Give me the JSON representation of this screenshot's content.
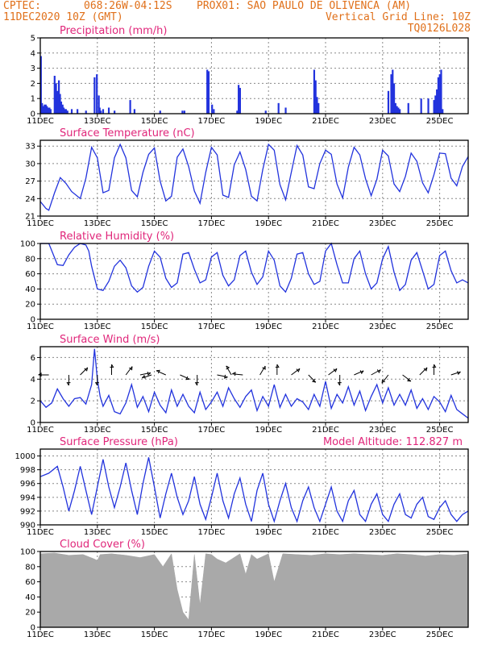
{
  "header": {
    "line1_left": "CPTEC:",
    "line1_coords": "068:26W-04:12S",
    "line1_station": "PROX01: SAO PAULO DE OLIVENCA (AM)",
    "line2_left": "11DEC2020 10Z (GMT)",
    "line2_right": "Vertical Grid Line: 10Z",
    "line3_right": "TQ0126L028"
  },
  "colors": {
    "header": "#e0701a",
    "title": "#e0267a",
    "series": "#2233dd",
    "cloud": "#a9a9a9",
    "grid": "#888888"
  },
  "x_axis": {
    "tick_labels": [
      "11DEC",
      "13DEC",
      "15DEC",
      "17DEC",
      "19DEC",
      "21DEC",
      "23DEC",
      "25DEC"
    ],
    "tick_days": [
      0,
      2,
      4,
      6,
      8,
      10,
      12,
      14
    ],
    "range_days": [
      0,
      15
    ]
  },
  "chart_data": [
    {
      "type": "bar",
      "title": "Precipitation (mm/h)",
      "ylim": [
        0,
        5
      ],
      "yticks": [
        0,
        1,
        2,
        3,
        4,
        5
      ],
      "x": [
        0.02,
        0.06,
        0.1,
        0.15,
        0.19,
        0.23,
        0.27,
        0.32,
        0.36,
        0.5,
        0.55,
        0.6,
        0.65,
        0.69,
        0.73,
        0.78,
        0.82,
        0.86,
        0.9,
        0.95,
        1.1,
        1.3,
        1.6,
        1.9,
        1.98,
        2.05,
        2.08,
        2.12,
        2.2,
        2.4,
        2.6,
        3.15,
        3.3,
        4.2,
        4.98,
        5.05,
        5.85,
        5.9,
        6.02,
        6.08,
        6.9,
        6.95,
        7.0,
        7.9,
        8.35,
        8.6,
        9.6,
        9.65,
        9.7,
        9.75,
        12.2,
        12.3,
        12.35,
        12.4,
        12.45,
        12.5,
        12.55,
        12.6,
        12.9,
        13.35,
        13.6,
        13.8,
        13.85,
        13.9,
        13.95,
        14.0,
        14.05,
        14.1
      ],
      "values": [
        3.8,
        0.7,
        0.5,
        0.6,
        0.6,
        0.5,
        0.4,
        0.4,
        0.3,
        2.5,
        2.0,
        1.5,
        2.2,
        1.3,
        0.8,
        0.6,
        0.4,
        0.3,
        0.3,
        0.2,
        0.3,
        0.3,
        0.2,
        2.4,
        2.6,
        1.2,
        0.4,
        0.2,
        0.3,
        0.4,
        0.2,
        0.9,
        0.3,
        0.2,
        0.2,
        0.2,
        2.9,
        2.8,
        0.6,
        0.3,
        0.2,
        1.9,
        1.7,
        0.2,
        0.7,
        0.4,
        2.9,
        2.2,
        1.1,
        0.7,
        1.5,
        2.6,
        2.9,
        2.0,
        0.7,
        0.5,
        0.4,
        0.3,
        0.7,
        1.0,
        1.0,
        0.9,
        1.2,
        1.6,
        2.4,
        2.6,
        2.9,
        0.3
      ]
    },
    {
      "type": "line",
      "title": "Surface Temperature (nC)",
      "ylim": [
        21,
        34
      ],
      "yticks": [
        21,
        24,
        27,
        30,
        33
      ],
      "x": [
        0,
        0.2,
        0.3,
        0.5,
        0.7,
        0.9,
        1.1,
        1.4,
        1.6,
        1.8,
        2.0,
        2.2,
        2.4,
        2.6,
        2.8,
        3.0,
        3.2,
        3.4,
        3.6,
        3.8,
        4.0,
        4.2,
        4.4,
        4.6,
        4.8,
        5.0,
        5.2,
        5.4,
        5.6,
        5.8,
        6.0,
        6.2,
        6.4,
        6.6,
        6.8,
        7.0,
        7.2,
        7.4,
        7.6,
        7.8,
        8.0,
        8.2,
        8.4,
        8.6,
        8.8,
        9.0,
        9.2,
        9.4,
        9.6,
        9.8,
        10.0,
        10.2,
        10.4,
        10.6,
        10.8,
        11.0,
        11.2,
        11.4,
        11.6,
        11.8,
        12.0,
        12.2,
        12.4,
        12.6,
        12.8,
        13.0,
        13.2,
        13.4,
        13.6,
        13.8,
        14.0,
        14.2,
        14.4,
        14.6,
        14.8,
        15.0
      ],
      "values": [
        23.5,
        22.3,
        22.0,
        25.0,
        27.6,
        26.6,
        25.2,
        24.0,
        27.5,
        32.8,
        31.0,
        25.0,
        25.4,
        31.0,
        33.3,
        31.0,
        25.4,
        24.3,
        28.5,
        31.6,
        32.7,
        27.0,
        23.6,
        24.4,
        31.1,
        32.5,
        29.5,
        25.3,
        23.2,
        28.5,
        32.8,
        31.5,
        24.6,
        24.2,
        29.8,
        32.0,
        29.0,
        24.4,
        23.6,
        29.0,
        33.3,
        32.3,
        26.4,
        23.8,
        28.5,
        33.1,
        31.5,
        26.0,
        25.7,
        30.0,
        32.3,
        31.6,
        26.5,
        24.1,
        29.4,
        32.8,
        31.5,
        27.4,
        24.5,
        27.3,
        32.3,
        31.3,
        26.5,
        25.2,
        27.8,
        31.8,
        30.4,
        26.7,
        25.0,
        28.1,
        31.8,
        31.7,
        27.5,
        26.2,
        29.5,
        31.2
      ]
    },
    {
      "type": "line",
      "title": "Relative Humidity (%)",
      "ylim": [
        0,
        100
      ],
      "yticks": [
        0,
        20,
        40,
        60,
        80,
        100
      ],
      "x": [
        0,
        0.3,
        0.6,
        0.8,
        1.0,
        1.2,
        1.4,
        1.6,
        1.7,
        1.8,
        2.0,
        2.2,
        2.4,
        2.6,
        2.8,
        3.0,
        3.2,
        3.4,
        3.6,
        3.8,
        4.0,
        4.2,
        4.4,
        4.6,
        4.8,
        5.0,
        5.2,
        5.4,
        5.6,
        5.8,
        6.0,
        6.2,
        6.4,
        6.6,
        6.8,
        7.0,
        7.2,
        7.4,
        7.6,
        7.8,
        8.0,
        8.2,
        8.4,
        8.6,
        8.8,
        9.0,
        9.2,
        9.4,
        9.6,
        9.8,
        10.0,
        10.2,
        10.4,
        10.6,
        10.8,
        11.0,
        11.2,
        11.4,
        11.6,
        11.8,
        12.0,
        12.2,
        12.4,
        12.6,
        12.8,
        13.0,
        13.2,
        13.4,
        13.6,
        13.8,
        14.0,
        14.2,
        14.4,
        14.6,
        14.8,
        15.0
      ],
      "values": [
        100,
        100,
        72,
        71,
        85,
        95,
        100,
        98,
        90,
        70,
        40,
        38,
        50,
        70,
        78,
        68,
        44,
        36,
        42,
        70,
        90,
        82,
        54,
        42,
        48,
        86,
        88,
        66,
        48,
        52,
        82,
        88,
        58,
        44,
        52,
        84,
        90,
        62,
        46,
        56,
        90,
        78,
        44,
        36,
        54,
        86,
        88,
        60,
        46,
        50,
        90,
        100,
        72,
        48,
        48,
        80,
        90,
        60,
        40,
        48,
        80,
        96,
        62,
        38,
        46,
        78,
        88,
        64,
        40,
        46,
        84,
        90,
        64,
        48,
        52,
        48
      ]
    },
    {
      "type": "line",
      "title": "Surface Wind (m/s)",
      "ylim": [
        0,
        7
      ],
      "yticks": [
        0,
        2,
        4,
        6
      ],
      "x": [
        0,
        0.2,
        0.4,
        0.6,
        0.8,
        1.0,
        1.2,
        1.4,
        1.6,
        1.8,
        1.9,
        2.0,
        2.1,
        2.2,
        2.4,
        2.6,
        2.8,
        3.0,
        3.2,
        3.4,
        3.6,
        3.8,
        4.0,
        4.2,
        4.4,
        4.6,
        4.8,
        5.0,
        5.2,
        5.4,
        5.6,
        5.8,
        6.0,
        6.2,
        6.4,
        6.6,
        6.8,
        7.0,
        7.2,
        7.4,
        7.6,
        7.8,
        8.0,
        8.2,
        8.4,
        8.6,
        8.8,
        9.0,
        9.2,
        9.4,
        9.6,
        9.8,
        10.0,
        10.2,
        10.4,
        10.6,
        10.8,
        11.0,
        11.2,
        11.4,
        11.6,
        11.8,
        12.0,
        12.2,
        12.4,
        12.6,
        12.8,
        13.0,
        13.2,
        13.4,
        13.6,
        13.8,
        14.0,
        14.2,
        14.4,
        14.6,
        14.8,
        15.0
      ],
      "values": [
        2.0,
        1.4,
        1.8,
        3.1,
        2.2,
        1.5,
        2.2,
        2.3,
        1.7,
        3.5,
        6.8,
        4.0,
        2.4,
        1.5,
        2.5,
        1.0,
        0.8,
        1.8,
        3.5,
        1.4,
        2.4,
        1.0,
        2.8,
        1.6,
        0.9,
        3.0,
        1.5,
        2.6,
        1.5,
        0.9,
        2.8,
        1.2,
        1.9,
        2.8,
        1.5,
        3.2,
        2.2,
        1.4,
        2.4,
        3.0,
        1.1,
        2.4,
        1.5,
        3.5,
        1.4,
        2.6,
        1.5,
        2.2,
        1.9,
        1.2,
        2.6,
        1.5,
        3.8,
        1.3,
        2.6,
        1.8,
        3.3,
        1.6,
        2.9,
        1.1,
        2.4,
        3.5,
        1.8,
        3.2,
        1.6,
        2.6,
        1.6,
        3.0,
        1.3,
        2.2,
        1.2,
        2.4,
        1.9,
        1.0,
        2.5,
        1.2,
        0.8,
        0.4
      ],
      "vectors": [
        {
          "day": 0.3,
          "u": -1,
          "v": 0
        },
        {
          "day": 1.0,
          "u": 0,
          "v": -1
        },
        {
          "day": 1.4,
          "u": 0.7,
          "v": 0.7
        },
        {
          "day": 2.0,
          "u": 0,
          "v": -1
        },
        {
          "day": 2.5,
          "u": 0,
          "v": 1
        },
        {
          "day": 3.0,
          "u": 0.6,
          "v": 0.8
        },
        {
          "day": 3.5,
          "u": 1,
          "v": 0.2
        },
        {
          "day": 3.9,
          "u": -0.9,
          "v": -0.3
        },
        {
          "day": 4.4,
          "u": -0.9,
          "v": 0.4
        },
        {
          "day": 4.9,
          "u": 0.9,
          "v": -0.4
        },
        {
          "day": 5.5,
          "u": 0,
          "v": -1
        },
        {
          "day": 6.2,
          "u": 1,
          "v": -0.2
        },
        {
          "day": 6.7,
          "u": -0.5,
          "v": 0.85
        },
        {
          "day": 7.1,
          "u": -1,
          "v": 0.1
        },
        {
          "day": 7.7,
          "u": 0.5,
          "v": 0.85
        },
        {
          "day": 8.3,
          "u": 0,
          "v": 1
        },
        {
          "day": 8.8,
          "u": 0.8,
          "v": 0.6
        },
        {
          "day": 9.4,
          "u": 0.7,
          "v": -0.7
        },
        {
          "day": 10.1,
          "u": 0.8,
          "v": 0.6
        },
        {
          "day": 10.5,
          "u": 0,
          "v": -1
        },
        {
          "day": 11.0,
          "u": 0.9,
          "v": 0.4
        },
        {
          "day": 11.6,
          "u": 0.9,
          "v": 0.5
        },
        {
          "day": 12.2,
          "u": -0.6,
          "v": -0.8
        },
        {
          "day": 12.7,
          "u": 0.8,
          "v": -0.6
        },
        {
          "day": 13.3,
          "u": 0.7,
          "v": 0.7
        },
        {
          "day": 13.8,
          "u": 0,
          "v": 1
        },
        {
          "day": 14.4,
          "u": 0.9,
          "v": 0.3
        }
      ]
    },
    {
      "type": "line",
      "title": "Surface Pressure (hPa)",
      "annotation": "Model Altitude: 112.827 m",
      "ylim": [
        990,
        1001
      ],
      "yticks": [
        990,
        992,
        994,
        996,
        998,
        1000
      ],
      "x": [
        0,
        0.3,
        0.6,
        0.8,
        1.0,
        1.2,
        1.4,
        1.6,
        1.8,
        2.0,
        2.2,
        2.4,
        2.6,
        2.8,
        3.0,
        3.2,
        3.4,
        3.6,
        3.8,
        4.0,
        4.2,
        4.4,
        4.6,
        4.8,
        5.0,
        5.2,
        5.4,
        5.6,
        5.8,
        6.0,
        6.2,
        6.4,
        6.6,
        6.8,
        7.0,
        7.2,
        7.4,
        7.6,
        7.8,
        8.0,
        8.2,
        8.4,
        8.6,
        8.8,
        9.0,
        9.2,
        9.4,
        9.6,
        9.8,
        10.0,
        10.2,
        10.4,
        10.6,
        10.8,
        11.0,
        11.2,
        11.4,
        11.6,
        11.8,
        12.0,
        12.2,
        12.4,
        12.6,
        12.8,
        13.0,
        13.2,
        13.4,
        13.6,
        13.8,
        14.0,
        14.2,
        14.4,
        14.6,
        14.8,
        15.0
      ],
      "values": [
        997.0,
        997.5,
        998.5,
        995.5,
        992.0,
        995.0,
        998.5,
        995.0,
        991.5,
        995.5,
        999.5,
        995.5,
        992.5,
        995.5,
        999.0,
        995.0,
        991.5,
        996.0,
        999.8,
        995.5,
        991.0,
        994.5,
        997.5,
        994.0,
        991.5,
        993.5,
        997.0,
        993.0,
        990.8,
        994.0,
        997.5,
        993.5,
        991.0,
        994.5,
        996.8,
        993.0,
        990.5,
        995.0,
        997.5,
        993.0,
        990.5,
        993.5,
        996.0,
        992.5,
        990.5,
        993.5,
        995.5,
        992.5,
        990.5,
        993.0,
        995.5,
        992.0,
        990.5,
        993.5,
        995.0,
        991.5,
        990.5,
        993.0,
        994.5,
        991.5,
        990.5,
        993.0,
        994.5,
        991.5,
        991.0,
        993.0,
        994.0,
        991.2,
        990.8,
        992.5,
        993.5,
        991.5,
        990.5,
        991.5,
        992.0
      ]
    },
    {
      "type": "area",
      "title": "Cloud Cover (%)",
      "ylim": [
        0,
        100
      ],
      "yticks": [
        0,
        20,
        40,
        60,
        80,
        100
      ],
      "x": [
        0,
        0.5,
        1.0,
        1.5,
        1.9,
        2.0,
        2.1,
        2.5,
        3.0,
        3.5,
        4.0,
        4.3,
        4.6,
        4.8,
        5.0,
        5.2,
        5.4,
        5.6,
        5.8,
        6.0,
        6.2,
        6.5,
        7.0,
        7.2,
        7.4,
        7.6,
        8.0,
        8.2,
        8.5,
        9.0,
        9.5,
        10.0,
        10.5,
        11.0,
        11.5,
        12.0,
        12.5,
        13.0,
        13.5,
        14.0,
        14.5,
        15.0
      ],
      "values": [
        97,
        98,
        95,
        96,
        90,
        88,
        96,
        97,
        95,
        92,
        96,
        80,
        97,
        50,
        20,
        10,
        96,
        30,
        97,
        96,
        90,
        85,
        97,
        70,
        96,
        90,
        97,
        60,
        97,
        96,
        95,
        97,
        96,
        97,
        96,
        95,
        97,
        96,
        94,
        96,
        95,
        97
      ]
    }
  ]
}
